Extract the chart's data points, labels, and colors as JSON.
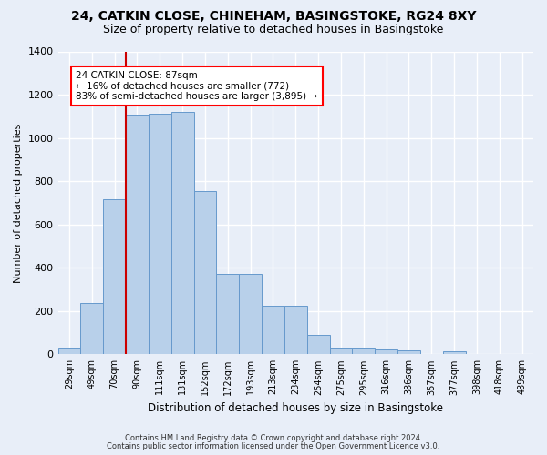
{
  "title": "24, CATKIN CLOSE, CHINEHAM, BASINGSTOKE, RG24 8XY",
  "subtitle": "Size of property relative to detached houses in Basingstoke",
  "xlabel": "Distribution of detached houses by size in Basingstoke",
  "ylabel": "Number of detached properties",
  "footer_line1": "Contains HM Land Registry data © Crown copyright and database right 2024.",
  "footer_line2": "Contains public sector information licensed under the Open Government Licence v3.0.",
  "bar_labels": [
    "29sqm",
    "49sqm",
    "70sqm",
    "90sqm",
    "111sqm",
    "131sqm",
    "152sqm",
    "172sqm",
    "193sqm",
    "213sqm",
    "234sqm",
    "254sqm",
    "275sqm",
    "295sqm",
    "316sqm",
    "336sqm",
    "357sqm",
    "377sqm",
    "398sqm",
    "418sqm",
    "439sqm"
  ],
  "bar_values": [
    30,
    237,
    715,
    1107,
    1110,
    1120,
    755,
    370,
    370,
    225,
    225,
    90,
    30,
    30,
    22,
    17,
    0,
    12,
    0,
    0,
    0
  ],
  "bar_color": "#b8d0ea",
  "bar_edge_color": "#6699cc",
  "ylim_max": 1400,
  "yticks": [
    0,
    200,
    400,
    600,
    800,
    1000,
    1200,
    1400
  ],
  "vline_color": "#cc0000",
  "vline_x": 2.5,
  "annotation_line1": "24 CATKIN CLOSE: 87sqm",
  "annotation_line2": "← 16% of detached houses are smaller (772)",
  "annotation_line3": "83% of semi-detached houses are larger (3,895) →",
  "background_color": "#e8eef8",
  "plot_bg_color": "#e8eef8",
  "grid_color": "#ffffff",
  "title_fontsize": 10,
  "subtitle_fontsize": 9
}
